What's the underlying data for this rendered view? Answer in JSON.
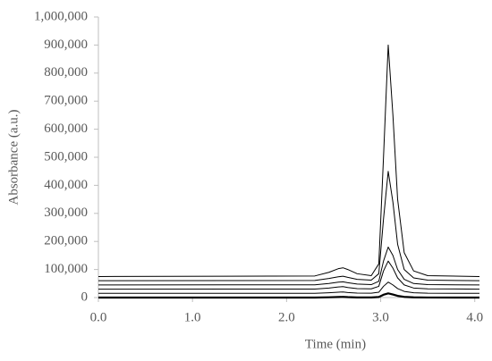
{
  "chart_data": {
    "type": "line",
    "x_label": "Time (min)",
    "y_label": "Absorbance (a.u.)",
    "xlim": [
      0,
      4.05
    ],
    "ylim": [
      0,
      1000000
    ],
    "xticks": [
      {
        "value": 0,
        "label": "0.0"
      },
      {
        "value": 1,
        "label": "1.0"
      },
      {
        "value": 2,
        "label": "2.0"
      },
      {
        "value": 3,
        "label": "3.0"
      },
      {
        "value": 4,
        "label": "4.0"
      }
    ],
    "yticks": [
      0,
      {
        "value": 100000,
        "label": "100,000"
      },
      {
        "value": 200000,
        "label": "200,000"
      },
      {
        "value": 300000,
        "label": "300,000"
      },
      {
        "value": 400000,
        "label": "400,000"
      },
      {
        "value": 500000,
        "label": "500,000"
      },
      {
        "value": 600000,
        "label": "600,000"
      },
      {
        "value": 700000,
        "label": "700,000"
      },
      {
        "value": 800000,
        "label": "800,000"
      },
      {
        "value": 900000,
        "label": "900,000"
      },
      {
        "value": 1000000,
        "label": "1,000,000"
      }
    ],
    "x": [
      0,
      2.3,
      2.45,
      2.55,
      2.6,
      2.65,
      2.75,
      2.9,
      2.98,
      3.03,
      3.08,
      3.13,
      3.18,
      3.25,
      3.35,
      3.5,
      4.05
    ],
    "series": [
      {
        "color": "#000000",
        "values": [
          75000,
          77000,
          90000,
          103000,
          106000,
          100000,
          85000,
          78000,
          120000,
          500000,
          900000,
          650000,
          350000,
          160000,
          95000,
          78000,
          75000
        ]
      },
      {
        "color": "#000000",
        "values": [
          60000,
          61000,
          68000,
          74000,
          76000,
          72000,
          65000,
          62000,
          85000,
          280000,
          450000,
          340000,
          190000,
          100000,
          70000,
          62000,
          60000
        ]
      },
      {
        "color": "#000000",
        "values": [
          45000,
          45500,
          50000,
          55000,
          56000,
          53000,
          48000,
          46000,
          58000,
          130000,
          180000,
          150000,
          100000,
          65000,
          50000,
          46000,
          45000
        ]
      },
      {
        "color": "#000000",
        "values": [
          30000,
          30300,
          34000,
          38000,
          39000,
          36000,
          32000,
          31000,
          40000,
          95000,
          130000,
          105000,
          70000,
          45000,
          34000,
          31000,
          30000
        ]
      },
      {
        "color": "#000000",
        "values": [
          15000,
          15100,
          17000,
          19000,
          20000,
          18000,
          16000,
          15500,
          19000,
          40000,
          55000,
          45000,
          32000,
          22000,
          17000,
          15500,
          15000
        ]
      },
      {
        "color": "#000000",
        "values": [
          0,
          0,
          1000,
          2000,
          2500,
          1500,
          500,
          300,
          2000,
          10000,
          15000,
          11000,
          6000,
          2500,
          800,
          200,
          0
        ]
      }
    ]
  }
}
